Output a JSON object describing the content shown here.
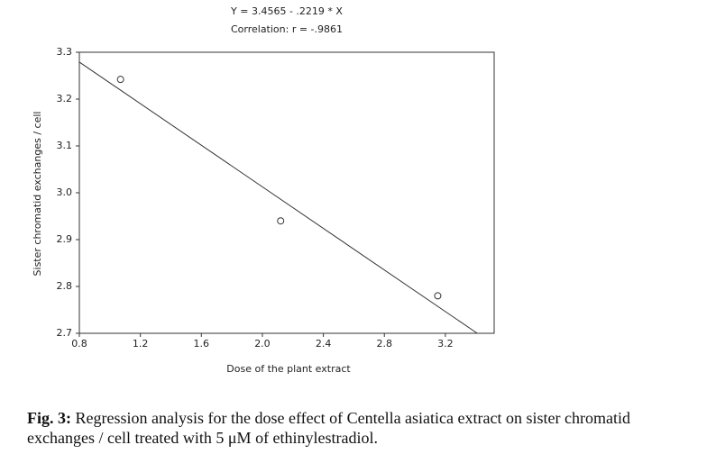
{
  "chart_data": {
    "type": "scatter",
    "title": "Y = 3.4565 - .2219 * X",
    "subtitle": "Correlation: r = -.9861",
    "x_label": "Dose of the plant extract",
    "y_label": "Sister chromatid exchanges / cell",
    "x": [
      1.07,
      2.12,
      3.15
    ],
    "values": [
      3.242,
      2.94,
      2.78
    ],
    "color": "#333333",
    "regression": {
      "intercept": 3.4565,
      "slope": -0.2219
    },
    "xlim": [
      0.8,
      3.52
    ],
    "ylim": [
      2.7,
      3.3
    ],
    "xticks": [
      0.8,
      1.2,
      1.6,
      {
        "value": 2,
        "label": "2.0"
      },
      2.4,
      2.8,
      3.2
    ],
    "yticks": [
      2.7,
      2.8,
      2.9,
      {
        "value": 3,
        "label": "3.0"
      },
      3.1,
      3.2,
      3.3
    ]
  },
  "caption": {
    "label": "Fig. 3:",
    "text": "Regression analysis for the dose effect of Centella asiatica extract on sister chromatid exchanges / cell treated with 5 μM of ethinylestradiol."
  }
}
